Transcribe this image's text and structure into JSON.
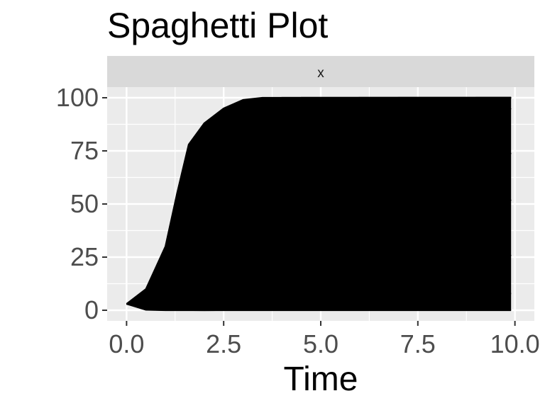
{
  "chart_data": {
    "type": "line",
    "title": "Spaghetti Plot",
    "facet_label": "x",
    "xlabel": "Time",
    "ylabel": "",
    "xlim": [
      -0.5,
      10.5
    ],
    "ylim": [
      -5,
      105
    ],
    "x_ticks": [
      0,
      2.5,
      5,
      7.5,
      10
    ],
    "x_tick_labels": [
      "0.0",
      "2.5",
      "5.0",
      "7.5",
      "10.0"
    ],
    "y_ticks": [
      0,
      25,
      50,
      75,
      100
    ],
    "y_tick_labels": [
      "0",
      "25",
      "50",
      "75",
      "100"
    ],
    "grid": true,
    "legend": "none",
    "colors": {
      "line": "#000000",
      "panel_background": "#ebebeb",
      "grid": "#ffffff",
      "strip_background": "#d9d9d9"
    },
    "description_series": "Many black trajectories start near 3 at Time 0; the fastest rise steeply after Time 1 and saturate at 100 by about Time 4, while the rest fill the region between 0 and 100 up to Time 10.",
    "series": [
      {
        "x": [
          0,
          0.5,
          1.0,
          1.3,
          1.6,
          2.0,
          2.5,
          3.0,
          3.5,
          4.0,
          5.0,
          6.0,
          7.0,
          8.0,
          9.0,
          9.9
        ],
        "y": [
          3,
          10,
          30,
          55,
          78,
          88,
          95,
          99,
          100,
          100,
          100,
          100,
          100,
          100,
          100,
          100
        ]
      },
      {
        "x": [
          0,
          0.5,
          1.0,
          1.5,
          2.0,
          2.5,
          3.0,
          3.5,
          4.0,
          5.0,
          6.0,
          7.0,
          8.0,
          9.0,
          9.9
        ],
        "y": [
          3,
          8,
          20,
          45,
          70,
          85,
          95,
          99,
          100,
          100,
          100,
          100,
          100,
          100,
          100
        ]
      },
      {
        "x": [
          0,
          0.5,
          1.0,
          1.5,
          2.0,
          2.5,
          3.0,
          3.5,
          4.0,
          4.5,
          5.0,
          6.0,
          7.0,
          8.0,
          9.0,
          9.9
        ],
        "y": [
          3,
          5,
          12,
          25,
          45,
          65,
          80,
          92,
          98,
          100,
          100,
          100,
          100,
          100,
          100,
          100
        ]
      },
      {
        "x": [
          0,
          0.5,
          1.0,
          1.5,
          2.0,
          2.5,
          3.0,
          3.5,
          4.0,
          5.0,
          6.0,
          7.0,
          8.0,
          9.0,
          9.9
        ],
        "y": [
          3,
          4,
          8,
          15,
          28,
          45,
          62,
          78,
          90,
          99,
          100,
          100,
          100,
          100,
          100
        ]
      },
      {
        "x": [
          0,
          0.5,
          1.0,
          1.5,
          2.0,
          2.5,
          3.0,
          4.0,
          5.0,
          6.0,
          7.0,
          8.0,
          9.0,
          9.9
        ],
        "y": [
          3,
          3,
          5,
          10,
          18,
          30,
          45,
          70,
          88,
          97,
          100,
          100,
          100,
          100
        ]
      },
      {
        "x": [
          0,
          0.5,
          1.0,
          1.5,
          2.0,
          3.0,
          4.0,
          5.0,
          6.0,
          7.0,
          8.0,
          9.0,
          9.9
        ],
        "y": [
          3,
          2,
          3,
          6,
          10,
          22,
          40,
          60,
          78,
          90,
          97,
          100,
          100
        ]
      },
      {
        "x": [
          0,
          0.5,
          1.0,
          2.0,
          3.0,
          4.0,
          5.0,
          6.0,
          7.0,
          8.0,
          9.0,
          9.9
        ],
        "y": [
          3,
          2,
          2,
          5,
          12,
          22,
          35,
          50,
          65,
          78,
          88,
          95
        ]
      },
      {
        "x": [
          0,
          0.5,
          1.0,
          2.0,
          3.0,
          4.0,
          5.0,
          6.0,
          7.0,
          8.0,
          9.0,
          9.9
        ],
        "y": [
          3,
          1,
          1,
          2,
          5,
          10,
          18,
          28,
          40,
          52,
          64,
          74
        ]
      },
      {
        "x": [
          0,
          0.5,
          1.0,
          2.0,
          3.0,
          4.0,
          5.0,
          6.0,
          7.0,
          8.0,
          9.0,
          9.9
        ],
        "y": [
          3,
          1,
          0.5,
          1,
          2,
          4,
          8,
          14,
          22,
          32,
          42,
          52
        ]
      },
      {
        "x": [
          0,
          0.5,
          1.0,
          2.0,
          3.0,
          4.0,
          5.0,
          6.0,
          7.0,
          8.0,
          9.0,
          9.9
        ],
        "y": [
          3,
          0.5,
          0.2,
          0.3,
          0.5,
          1,
          2,
          4,
          7,
          12,
          18,
          26
        ]
      },
      {
        "x": [
          0,
          0.5,
          1.0,
          2.0,
          3.0,
          4.0,
          5.0,
          6.0,
          7.0,
          8.0,
          9.0,
          9.9
        ],
        "y": [
          3,
          0.3,
          0.1,
          0,
          0.1,
          0.2,
          0.4,
          0.8,
          1.5,
          3,
          5,
          8
        ]
      },
      {
        "x": [
          0,
          0.5,
          1.0,
          2.0,
          3.0,
          4.0,
          5.0,
          6.0,
          7.0,
          8.0,
          9.0,
          9.9
        ],
        "y": [
          3,
          0.2,
          0,
          0,
          0,
          0,
          0,
          0,
          0,
          0,
          0,
          0
        ]
      }
    ]
  }
}
